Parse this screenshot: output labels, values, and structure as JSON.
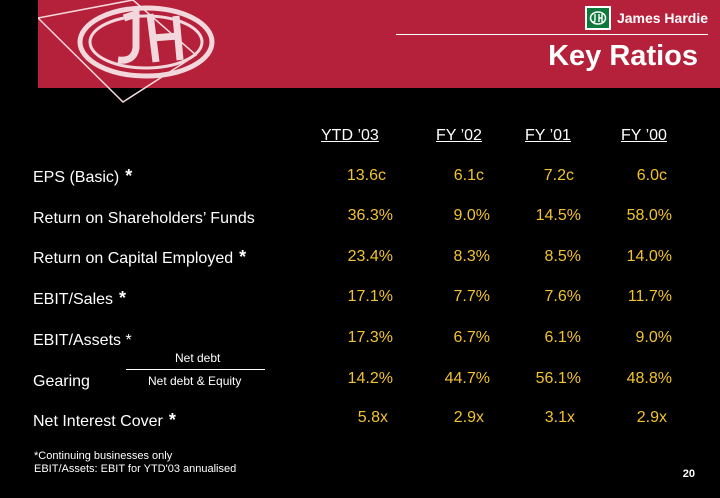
{
  "brand": {
    "name": "James Hardie"
  },
  "title": "Key Ratios",
  "columns": [
    "YTD ’03",
    "FY ’02",
    "FY ’01",
    "FY ’00"
  ],
  "rows": [
    {
      "label": "EPS (Basic)",
      "star": "*",
      "values": [
        "13.6c",
        "6.1c",
        "7.2c",
        "6.0c"
      ]
    },
    {
      "label": "Return on Shareholders’ Funds",
      "star": "",
      "values": [
        "36.3%",
        "9.0%",
        "14.5%",
        "58.0%"
      ]
    },
    {
      "label": "Return on Capital Employed",
      "star": "*",
      "values": [
        "23.4%",
        "8.3%",
        "8.5%",
        "14.0%"
      ]
    },
    {
      "label": "EBIT/Sales",
      "star": "*",
      "values": [
        "17.1%",
        "7.7%",
        "7.6%",
        "11.7%"
      ]
    },
    {
      "label": "EBIT/Assets *",
      "star": "",
      "values": [
        "17.3%",
        "6.7%",
        "6.1%",
        "9.0%"
      ]
    },
    {
      "label": "Gearing",
      "star": "",
      "values": [
        "14.2%",
        "44.7%",
        "56.1%",
        "48.8%"
      ]
    },
    {
      "label": "Net Interest Cover",
      "star": "*",
      "values": [
        "5.8x",
        "2.9x",
        "3.1x",
        "2.9x"
      ]
    }
  ],
  "gearing_formula": {
    "numerator": "Net debt",
    "denominator": "Net debt & Equity"
  },
  "footnotes": [
    "*Continuing businesses only",
    "EBIT/Assets:  EBIT for YTD'03 annualised"
  ],
  "page_number": "20",
  "colors": {
    "banner": "#b5213a",
    "value_text": "#f2c230",
    "background": "#000000"
  }
}
